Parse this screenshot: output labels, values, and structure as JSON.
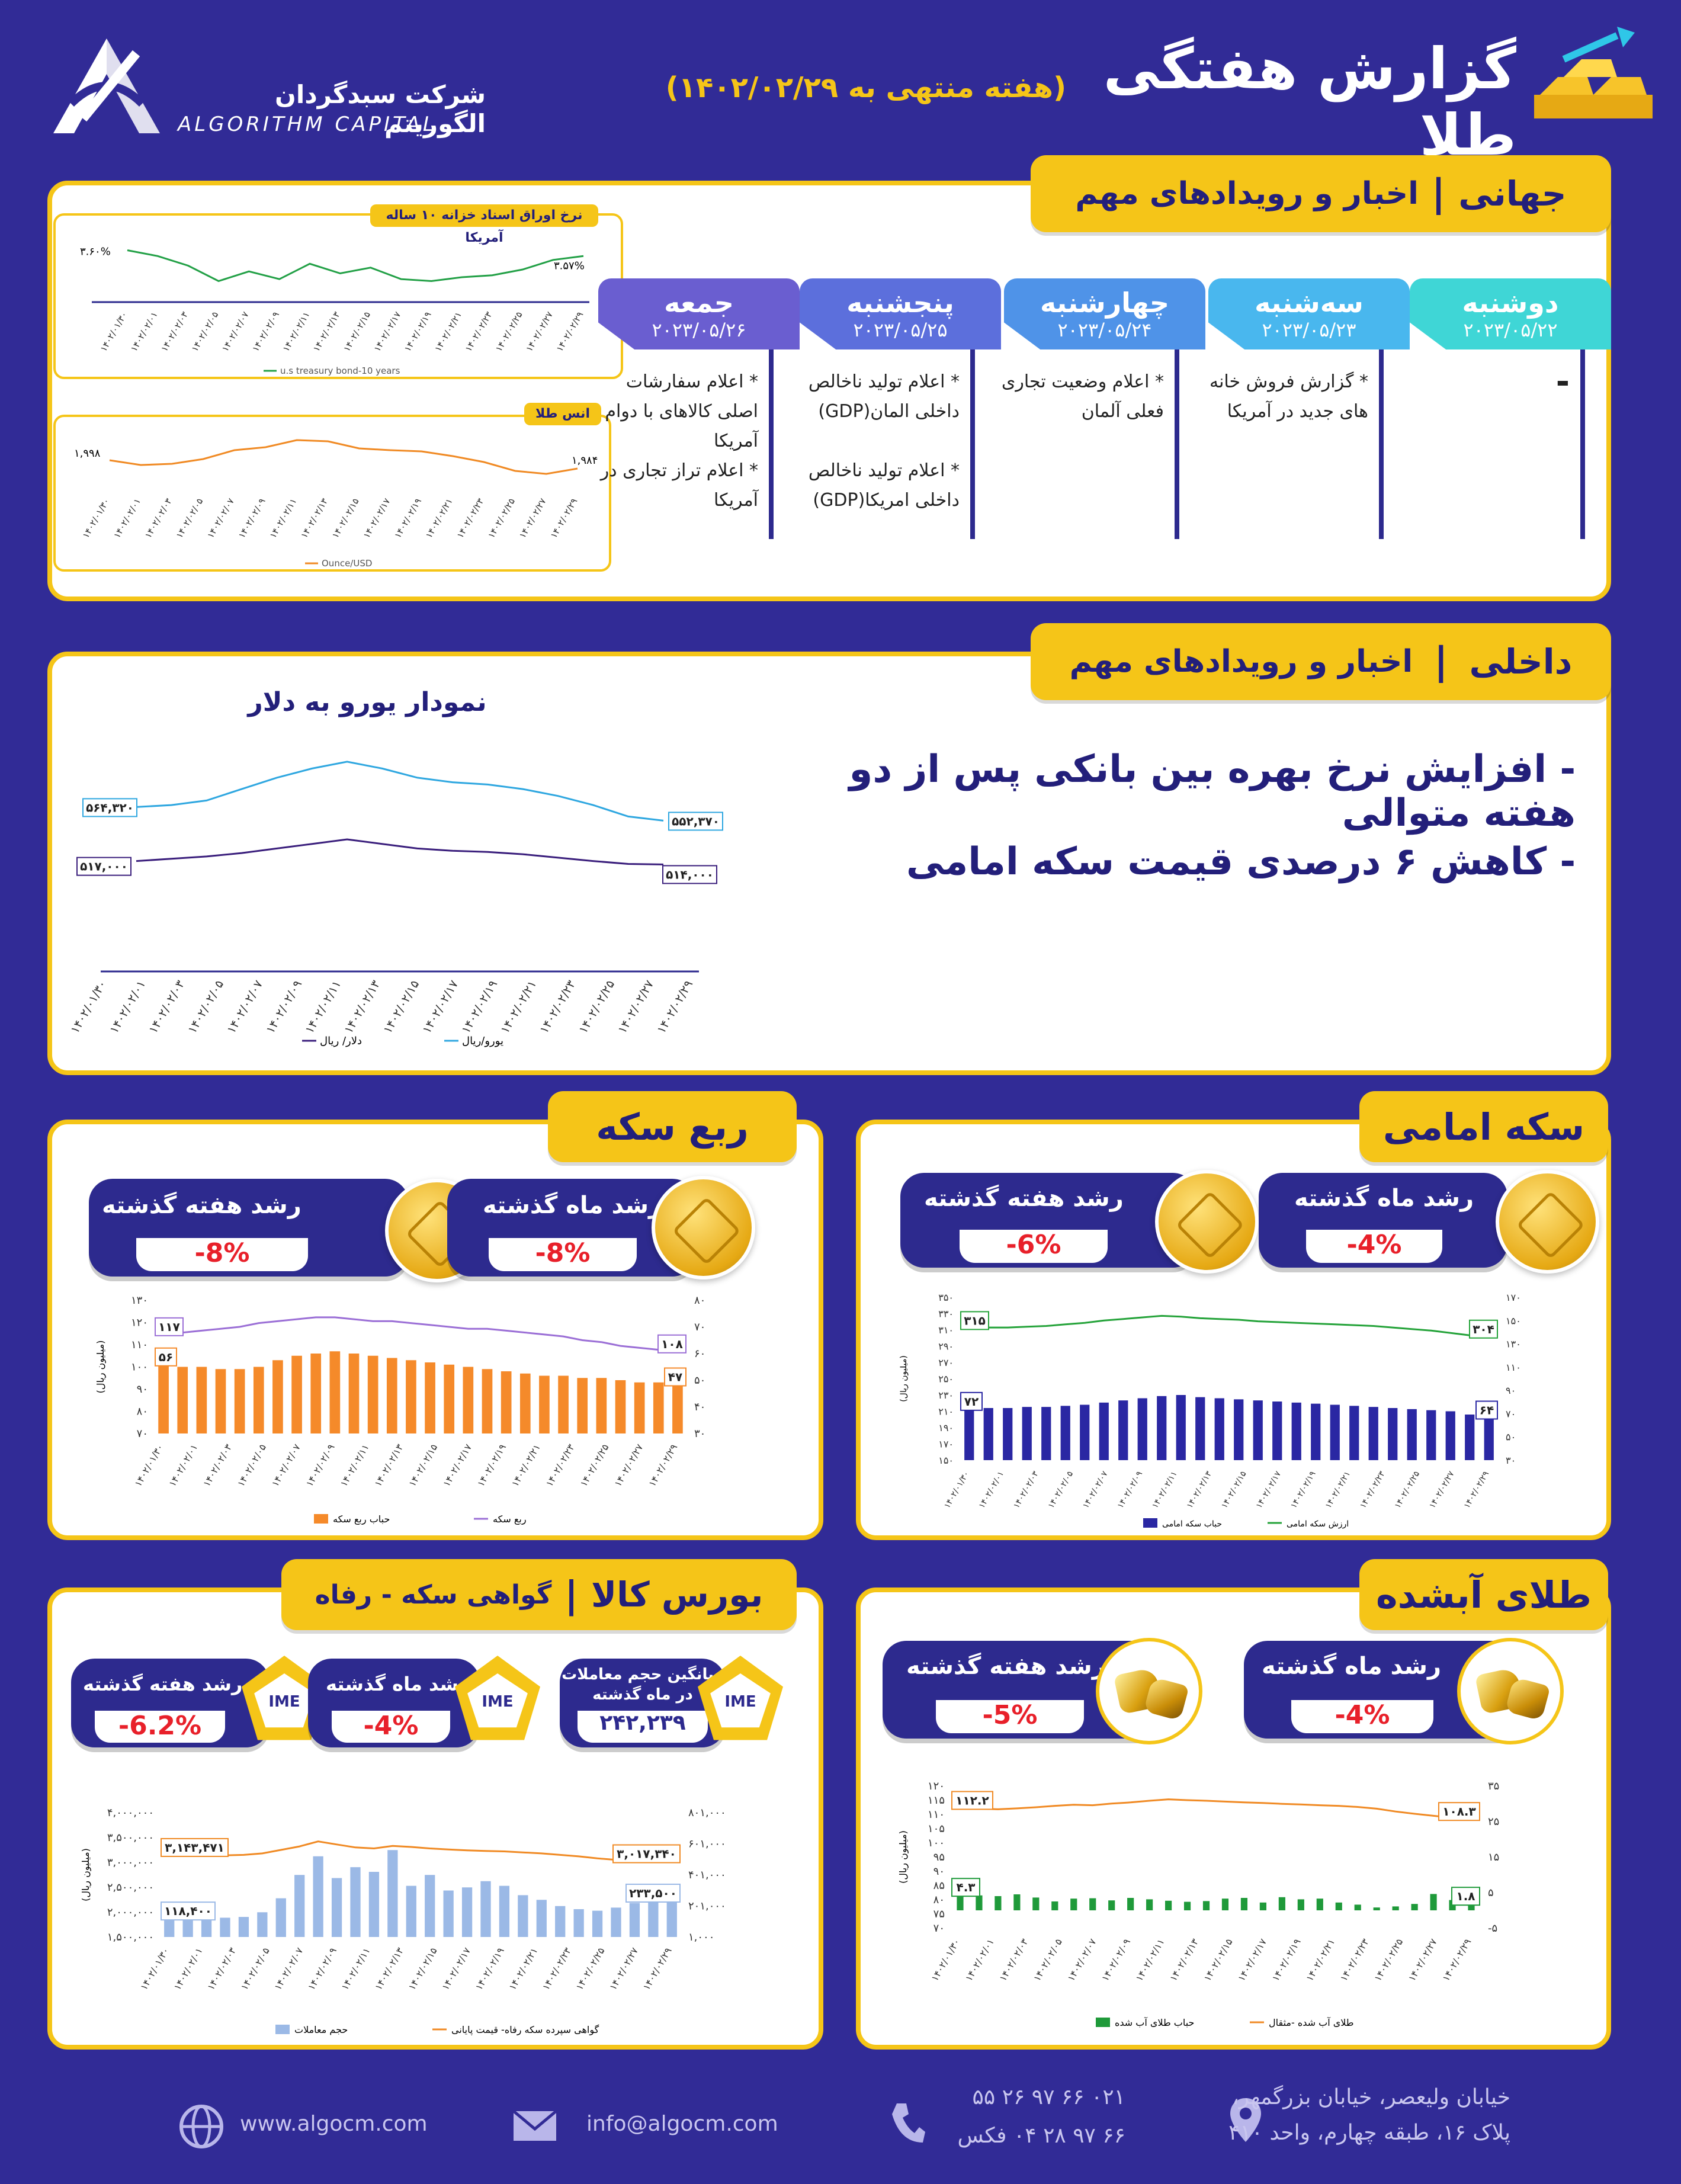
{
  "header": {
    "company_fa": "شرکت سبدگردان الگوریتم",
    "company_en": "ALGORITHM CAPITAL",
    "title": "گزارش هفتگی طلا",
    "subtitle": "(هفته منتهی به  ۱۴۰۲/۰۲/۲۹)"
  },
  "global": {
    "tag_main": "جهانی",
    "tag_sub": "اخبار و رویدادهای مهم",
    "days": [
      {
        "name": "دوشنبه",
        "date": "۲۰۲۳/۰۵/۲۲",
        "color": "#3fd6d6",
        "events": [
          "-"
        ]
      },
      {
        "name": "سه‌شنبه",
        "date": "۲۰۲۳/۰۵/۲۳",
        "color": "#49b7ee",
        "events": [
          "* گزارش فروش خانه های جدید در آمریکا"
        ]
      },
      {
        "name": "چهارشنبه",
        "date": "۲۰۲۳/۰۵/۲۴",
        "color": "#4f93e8",
        "events": [
          "* اعلام وضعیت تجاری فعلی آلمان"
        ]
      },
      {
        "name": "پنجشنبه",
        "date": "۲۰۲۳/۰۵/۲۵",
        "color": "#5c6fdc",
        "events": [
          "* اعلام تولید ناخالص داخلی المان(GDP)",
          "* اعلام تولید ناخالص داخلی امریکا(GDP)"
        ]
      },
      {
        "name": "جمعه",
        "date": "۲۰۲۳/۰۵/۲۶",
        "color": "#6a5ed0",
        "events": [
          "* اعلام سفارشات اصلی کالاهای با دوام آمریکا",
          "* اعلام تراز تجاری در آمریکا"
        ]
      }
    ]
  },
  "domestic": {
    "tag_main": "داخلی",
    "tag_sub": "اخبار و رویدادهای مهم",
    "chart_title": "نمودار یورو به دلار",
    "headlines": [
      "- افزایش نرخ بهره بین بانکی پس از دو هفته متوالی",
      "- کاهش ۶ درصدی قیمت سکه امامی"
    ]
  },
  "rob": {
    "tag": "ربع سکه",
    "week_label": "رشد هفته گذشته",
    "week_value": "-8%",
    "month_label": "رشد ماه گذشته",
    "month_value": "-8%"
  },
  "emami": {
    "tag": "سکه امامی",
    "week_label": "رشد هفته گذشته",
    "week_value": "-6%",
    "month_label": "رشد ماه گذشته",
    "month_value": "-4%"
  },
  "bourse": {
    "tag_main": "بورس کالا",
    "tag_sub": "گواهی سکه - رفاه",
    "week_label": "رشد هفته گذشته",
    "week_value": "-6.2%",
    "month_label": "رشد ماه گذشته",
    "month_value": "-4%",
    "avg_label": "میانگین حجم معاملات در ماه گذشته",
    "avg_value": "۲۴۲,۲۳۹",
    "logo_text": "IME"
  },
  "molten": {
    "tag": "طلای آبشده",
    "week_label": "رشد هفته گذشته",
    "week_value": "-5%",
    "month_label": "رشد ماه گذشته",
    "month_value": "-4%"
  },
  "footer": {
    "website": "www.algocm.com",
    "email": "info@algocm.com",
    "phone": "۰۲۱ ۶۶ ۹۷ ۲۶ ۵۵",
    "fax": "۶۶ ۹۷ ۲۸ ۰۴ فکس",
    "address1": "خیابان ولیعصر، خیابان بزرگمهر،",
    "address2": "پلاک ۱۶، طبقه چهارم، واحد ۴۱۰"
  },
  "chart_data": [
    {
      "id": "bond",
      "type": "line",
      "title": "نرخ اوراق اسناد خزانه ۱۰ ساله آمریکا",
      "legend": "u.s treasury bond-10 years",
      "x": [
        "۱۴۰۲/۰۱/۳۰",
        "۱۴۰۲/۰۲/۰۱",
        "۱۴۰۲/۰۲/۰۳",
        "۱۴۰۲/۰۲/۰۵",
        "۱۴۰۲/۰۲/۰۷",
        "۱۴۰۲/۰۲/۰۹",
        "۱۴۰۲/۰۲/۱۱",
        "۱۴۰۲/۰۲/۱۳",
        "۱۴۰۲/۰۲/۱۵",
        "۱۴۰۲/۰۲/۱۷",
        "۱۴۰۲/۰۲/۱۹",
        "۱۴۰۲/۰۲/۲۱",
        "۱۴۰۲/۰۲/۲۳",
        "۱۴۰۲/۰۲/۲۵",
        "۱۴۰۲/۰۲/۲۷",
        "۱۴۰۲/۰۲/۲۹"
      ],
      "values": [
        3.6,
        3.57,
        3.52,
        3.44,
        3.49,
        3.45,
        3.53,
        3.48,
        3.51,
        3.45,
        3.44,
        3.46,
        3.47,
        3.5,
        3.55,
        3.57
      ],
      "label_first": "۳.۶۰%",
      "label_last": "۳.۵۷%",
      "color": "#22a046"
    },
    {
      "id": "ounce",
      "type": "line",
      "title": "انس طلا",
      "legend": "Ounce/USD",
      "x": [
        "۱۴۰۲/۰۱/۳۰",
        "۱۴۰۲/۰۲/۰۱",
        "۱۴۰۲/۰۲/۰۳",
        "۱۴۰۲/۰۲/۰۵",
        "۱۴۰۲/۰۲/۰۷",
        "۱۴۰۲/۰۲/۰۹",
        "۱۴۰۲/۰۲/۱۱",
        "۱۴۰۲/۰۲/۱۳",
        "۱۴۰۲/۰۲/۱۵",
        "۱۴۰۲/۰۲/۱۷",
        "۱۴۰۲/۰۲/۱۹",
        "۱۴۰۲/۰۲/۲۱",
        "۱۴۰۲/۰۲/۲۳",
        "۱۴۰۲/۰۲/۲۵",
        "۱۴۰۲/۰۲/۲۷",
        "۱۴۰۲/۰۲/۲۹"
      ],
      "values": [
        1998,
        1990,
        1992,
        2000,
        2015,
        2020,
        2032,
        2030,
        2018,
        2015,
        2013,
        2005,
        1995,
        1980,
        1975,
        1984
      ],
      "label_first": "۱,۹۹۸",
      "label_last": "۱,۹۸۴",
      "color": "#f08a24"
    },
    {
      "id": "fx",
      "type": "line",
      "title": "نمودار یورو به دلار",
      "x": [
        "۱۴۰۲/۰۱/۳۰",
        "۱۴۰۲/۰۲/۰۱",
        "۱۴۰۲/۰۲/۰۳",
        "۱۴۰۲/۰۲/۰۵",
        "۱۴۰۲/۰۲/۰۷",
        "۱۴۰۲/۰۲/۰۹",
        "۱۴۰۲/۰۲/۱۱",
        "۱۴۰۲/۰۲/۱۳",
        "۱۴۰۲/۰۲/۱۵",
        "۱۴۰۲/۰۲/۱۷",
        "۱۴۰۲/۰۲/۱۹",
        "۱۴۰۲/۰۲/۲۱",
        "۱۴۰۲/۰۲/۲۳",
        "۱۴۰۲/۰۲/۲۵",
        "۱۴۰۲/۰۲/۲۷",
        "۱۴۰۲/۰۲/۲۹"
      ],
      "series": [
        {
          "name": "یورو/ریال",
          "values": [
            564320,
            566000,
            570000,
            580000,
            590000,
            598000,
            604000,
            598000,
            590000,
            586000,
            584000,
            580000,
            574000,
            566000,
            556000,
            552370
          ],
          "color": "#2fa7e0"
        },
        {
          "name": "دلار/ ریال",
          "values": [
            517000,
            519000,
            521000,
            524000,
            528000,
            532000,
            536000,
            532000,
            528000,
            526000,
            525000,
            523000,
            520000,
            517000,
            514500,
            514000
          ],
          "color": "#3a1e7c"
        }
      ],
      "label_euro_first": "۵۶۴,۳۲۰",
      "label_euro_last": "۵۵۲,۳۷۰",
      "label_usd_first": "۵۱۷,۰۰۰",
      "label_usd_last": "۵۱۴,۰۰۰"
    },
    {
      "id": "rob_chart",
      "type": "bar",
      "ylabel": "(میلیون ریال)",
      "left_ticks": [
        "۱۳۰",
        "۱۲۰",
        "۱۱۰",
        "۱۰۰",
        "۹۰",
        "۸۰",
        "۷۰"
      ],
      "right_ticks": [
        "۸۰",
        "۷۰",
        "۶۰",
        "۵۰",
        "۴۰",
        "۳۰"
      ],
      "x": [
        "۱۴۰۲/۰۱/۳۰",
        "۱۴۰۲/۰۲/۰۱",
        "۱۴۰۲/۰۲/۰۳",
        "۱۴۰۲/۰۲/۰۵",
        "۱۴۰۲/۰۲/۰۷",
        "۱۴۰۲/۰۲/۰۹",
        "۱۴۰۲/۰۲/۱۱",
        "۱۴۰۲/۰۲/۱۳",
        "۱۴۰۲/۰۲/۱۵",
        "۱۴۰۲/۰۲/۱۷",
        "۱۴۰۲/۰۲/۱۹",
        "۱۴۰۲/۰۲/۲۱",
        "۱۴۰۲/۰۲/۲۳",
        "۱۴۰۲/۰۲/۲۵",
        "۱۴۰۲/۰۲/۲۷",
        "۱۴۰۲/۰۲/۲۹"
      ],
      "bar_series": {
        "name": "حباب ربع سکه",
        "color": "#f58a2a",
        "values": [
          56,
          55,
          55,
          54,
          54,
          55,
          58,
          60,
          61,
          62,
          61,
          60,
          59,
          58,
          57,
          56,
          55,
          54,
          53,
          52,
          51,
          51,
          50,
          50,
          49,
          48,
          48,
          47
        ]
      },
      "line_series": {
        "name": "ربع سکه",
        "color": "#9b6fd6",
        "values": [
          117,
          118,
          119,
          120,
          121,
          123,
          124,
          125,
          126,
          126,
          125,
          124,
          124,
          123,
          122,
          121,
          120,
          120,
          119,
          118,
          117,
          116,
          114,
          113,
          111,
          110,
          109,
          108
        ]
      },
      "label_line_first": "۱۱۷",
      "label_line_last": "۱۰۸",
      "label_bar_first": "۵۶",
      "label_bar_last": "۴۷"
    },
    {
      "id": "emami_chart",
      "type": "bar",
      "ylabel": "(میلیون ریال)",
      "left_ticks": [
        "۳۵۰",
        "۳۳۰",
        "۳۱۰",
        "۲۹۰",
        "۲۷۰",
        "۲۵۰",
        "۲۳۰",
        "۲۱۰",
        "۱۹۰",
        "۱۷۰",
        "۱۵۰"
      ],
      "right_ticks": [
        "۱۷۰",
        "۱۵۰",
        "۱۳۰",
        "۱۱۰",
        "۹۰",
        "۷۰",
        "۵۰",
        "۳۰"
      ],
      "x": [
        "۱۴۰۲/۰۱/۳۰",
        "۱۴۰۲/۰۲/۰۱",
        "۱۴۰۲/۰۲/۰۳",
        "۱۴۰۲/۰۲/۰۵",
        "۱۴۰۲/۰۲/۰۷",
        "۱۴۰۲/۰۲/۰۹",
        "۱۴۰۲/۰۲/۱۱",
        "۱۴۰۲/۰۲/۱۳",
        "۱۴۰۲/۰۲/۱۵",
        "۱۴۰۲/۰۲/۱۷",
        "۱۴۰۲/۰۲/۱۹",
        "۱۴۰۲/۰۲/۲۱",
        "۱۴۰۲/۰۲/۲۳",
        "۱۴۰۲/۰۲/۲۵",
        "۱۴۰۲/۰۲/۲۷",
        "۱۴۰۲/۰۲/۲۹"
      ],
      "bar_series": {
        "name": "حباب سکه امامی",
        "color": "#2a27a3",
        "values": [
          72,
          73,
          73,
          74,
          74,
          75,
          76,
          78,
          80,
          82,
          84,
          85,
          83,
          82,
          81,
          80,
          79,
          78,
          77,
          76,
          75,
          74,
          73,
          72,
          71,
          70,
          67,
          64
        ]
      },
      "line_series": {
        "name": "ارزش سکه امامی",
        "color": "#25a33a",
        "values": [
          315,
          316,
          316,
          317,
          318,
          320,
          322,
          325,
          327,
          329,
          331,
          330,
          328,
          327,
          326,
          324,
          323,
          322,
          321,
          320,
          319,
          318,
          316,
          314,
          312,
          309,
          306,
          304
        ]
      },
      "label_line_first": "۳۱۵",
      "label_line_last": "۳۰۴",
      "label_bar_first": "۷۲",
      "label_bar_last": "۶۴"
    },
    {
      "id": "bourse_chart",
      "type": "bar",
      "ylabel": "(میلیون ریال)",
      "left_ticks": [
        "۴,۰۰۰,۰۰۰",
        "۳,۵۰۰,۰۰۰",
        "۳,۰۰۰,۰۰۰",
        "۲,۵۰۰,۰۰۰",
        "۲,۰۰۰,۰۰۰",
        "۱,۵۰۰,۰۰۰"
      ],
      "right_ticks": [
        "۸۰۱,۰۰۰",
        "۶۰۱,۰۰۰",
        "۴۰۱,۰۰۰",
        "۲۰۱,۰۰۰",
        "۱,۰۰۰"
      ],
      "x": [
        "۱۴۰۲/۰۱/۳۰",
        "۱۴۰۲/۰۲/۰۱",
        "۱۴۰۲/۰۲/۰۳",
        "۱۴۰۲/۰۲/۰۵",
        "۱۴۰۲/۰۲/۰۷",
        "۱۴۰۲/۰۲/۰۹",
        "۱۴۰۲/۰۲/۱۱",
        "۱۴۰۲/۰۲/۱۳",
        "۱۴۰۲/۰۲/۱۵",
        "۱۴۰۲/۰۲/۱۷",
        "۱۴۰۲/۰۲/۱۹",
        "۱۴۰۲/۰۲/۲۱",
        "۱۴۰۲/۰۲/۲۳",
        "۱۴۰۲/۰۲/۲۵",
        "۱۴۰۲/۰۲/۲۷",
        "۱۴۰۲/۰۲/۲۹"
      ],
      "bar_series": {
        "name": "حجم معاملات",
        "color": "#9bb9e6",
        "values": [
          118400,
          118000,
          120000,
          125000,
          130000,
          160000,
          250000,
          400000,
          520000,
          380000,
          450000,
          420000,
          560000,
          330000,
          400000,
          300000,
          320000,
          360000,
          330000,
          270000,
          240000,
          200000,
          180000,
          170000,
          190000,
          220000,
          260000,
          233500
        ]
      },
      "line_series": {
        "name": "گواهی سپرده سکه رفاه- قیمت پایانی",
        "color": "#f08a24",
        "values": [
          3143471,
          3140000,
          3135000,
          3140000,
          3150000,
          3180000,
          3250000,
          3320000,
          3420000,
          3360000,
          3300000,
          3280000,
          3330000,
          3310000,
          3280000,
          3260000,
          3240000,
          3230000,
          3220000,
          3200000,
          3180000,
          3150000,
          3120000,
          3080000,
          3050000,
          3030000,
          3020000,
          3017340
        ]
      },
      "label_line_first": "۳,۱۴۳,۴۷۱",
      "label_line_last": "۳,۰۱۷,۳۴۰",
      "label_bar_first": "۱۱۸,۴۰۰",
      "label_bar_last": "۲۳۳,۵۰۰"
    },
    {
      "id": "molten_chart",
      "type": "bar",
      "ylabel": "(میلیون ریال)",
      "left_ticks": [
        "۱۲۰",
        "۱۱۵",
        "۱۱۰",
        "۱۰۵",
        "۱۰۰",
        "۹۵",
        "۹۰",
        "۸۵",
        "۸۰",
        "۷۵",
        "۷۰"
      ],
      "right_ticks": [
        "۳۵",
        "۲۵",
        "۱۵",
        "۵",
        "-۵"
      ],
      "x": [
        "۱۴۰۲/۰۱/۳۰",
        "۱۴۰۲/۰۲/۰۱",
        "۱۴۰۲/۰۲/۰۳",
        "۱۴۰۲/۰۲/۰۵",
        "۱۴۰۲/۰۲/۰۷",
        "۱۴۰۲/۰۲/۰۹",
        "۱۴۰۲/۰۲/۱۱",
        "۱۴۰۲/۰۲/۱۳",
        "۱۴۰۲/۰۲/۱۵",
        "۱۴۰۲/۰۲/۱۷",
        "۱۴۰۲/۰۲/۱۹",
        "۱۴۰۲/۰۲/۲۱",
        "۱۴۰۲/۰۲/۲۳",
        "۱۴۰۲/۰۲/۲۵",
        "۱۴۰۲/۰۲/۲۷",
        "۱۴۰۲/۰۲/۲۹"
      ],
      "bar_series": {
        "name": "حباب طلای آب شده",
        "color": "#1f9a3a",
        "values": [
          4.3,
          4.2,
          4.0,
          4.5,
          3.6,
          2.5,
          3.3,
          3.4,
          2.8,
          3.5,
          3.1,
          2.7,
          2.4,
          2.6,
          3.3,
          3.5,
          2.2,
          3.7,
          3.1,
          3.3,
          2.2,
          1.6,
          0.8,
          1.1,
          1.8,
          4.6,
          2.9,
          1.8
        ]
      },
      "line_series": {
        "name": "طلای آب شده -مثقال",
        "color": "#f08a24",
        "values": [
          112.2,
          112.0,
          111.8,
          112.1,
          112.5,
          113.0,
          113.4,
          113.2,
          113.8,
          114.2,
          114.8,
          115.3,
          115.0,
          114.8,
          114.5,
          114.2,
          114.0,
          113.7,
          113.5,
          113.2,
          113.0,
          112.6,
          112.0,
          111.0,
          110.2,
          109.5,
          108.8,
          108.3
        ]
      },
      "label_line_first": "۱۱۲.۲",
      "label_line_last": "۱۰۸.۳",
      "label_bar_first": "۴.۳",
      "label_bar_last": "۱.۸"
    }
  ]
}
